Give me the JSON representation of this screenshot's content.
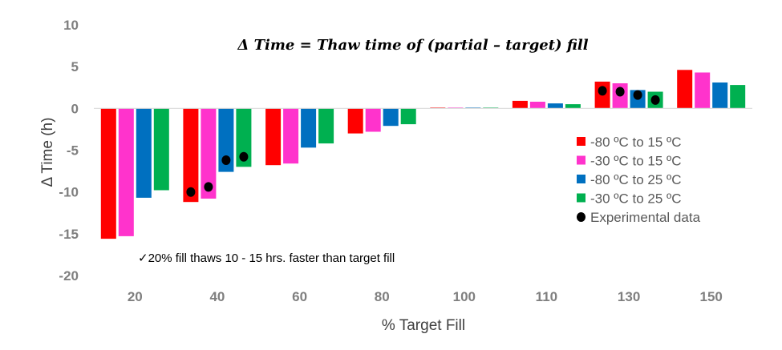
{
  "chart_data": {
    "type": "bar",
    "title": "Δ Time  =  Thaw time of (partial – target) fill",
    "xlabel": "% Target Fill",
    "ylabel": "Δ Time  (h)",
    "ylim": [
      -20,
      10
    ],
    "yticks": [
      10,
      5,
      0,
      -5,
      -10,
      -15,
      -20
    ],
    "categories": [
      "20",
      "40",
      "60",
      "80",
      "100",
      "110",
      "130",
      "150"
    ],
    "grid": false,
    "legend_position": "right",
    "series": [
      {
        "name": "-80 ºC to 15 ºC",
        "color": "#ff0000",
        "values": [
          -15.6,
          -11.2,
          -6.8,
          -3.0,
          0.1,
          0.9,
          3.2,
          4.6
        ]
      },
      {
        "name": "-30 ºC to 15 ºC",
        "color": "#ff33cc",
        "values": [
          -15.3,
          -10.8,
          -6.6,
          -2.8,
          0.1,
          0.8,
          3.0,
          4.3
        ]
      },
      {
        "name": "-80 ºC to 25 ºC",
        "color": "#0070c0",
        "values": [
          -10.7,
          -7.6,
          -4.7,
          -2.1,
          0.1,
          0.6,
          2.2,
          3.1
        ]
      },
      {
        "name": "-30 ºC to 25 ºC",
        "color": "#00b050",
        "values": [
          -9.8,
          -7.0,
          -4.2,
          -1.9,
          0.1,
          0.5,
          2.0,
          2.8
        ]
      }
    ],
    "experimental": {
      "name": "Experimental data",
      "color": "#000000",
      "points": [
        {
          "category": "40",
          "series": 0,
          "value": -10.0
        },
        {
          "category": "40",
          "series": 1,
          "value": -9.4
        },
        {
          "category": "40",
          "series": 2,
          "value": -6.2
        },
        {
          "category": "40",
          "series": 3,
          "value": -5.8
        },
        {
          "category": "130",
          "series": 0,
          "value": 2.1
        },
        {
          "category": "130",
          "series": 1,
          "value": 2.0
        },
        {
          "category": "130",
          "series": 2,
          "value": 1.6
        },
        {
          "category": "130",
          "series": 3,
          "value": 1.0
        }
      ]
    },
    "annotation": "✓20% fill thaws 10 - 15 hrs. faster than target fill"
  }
}
